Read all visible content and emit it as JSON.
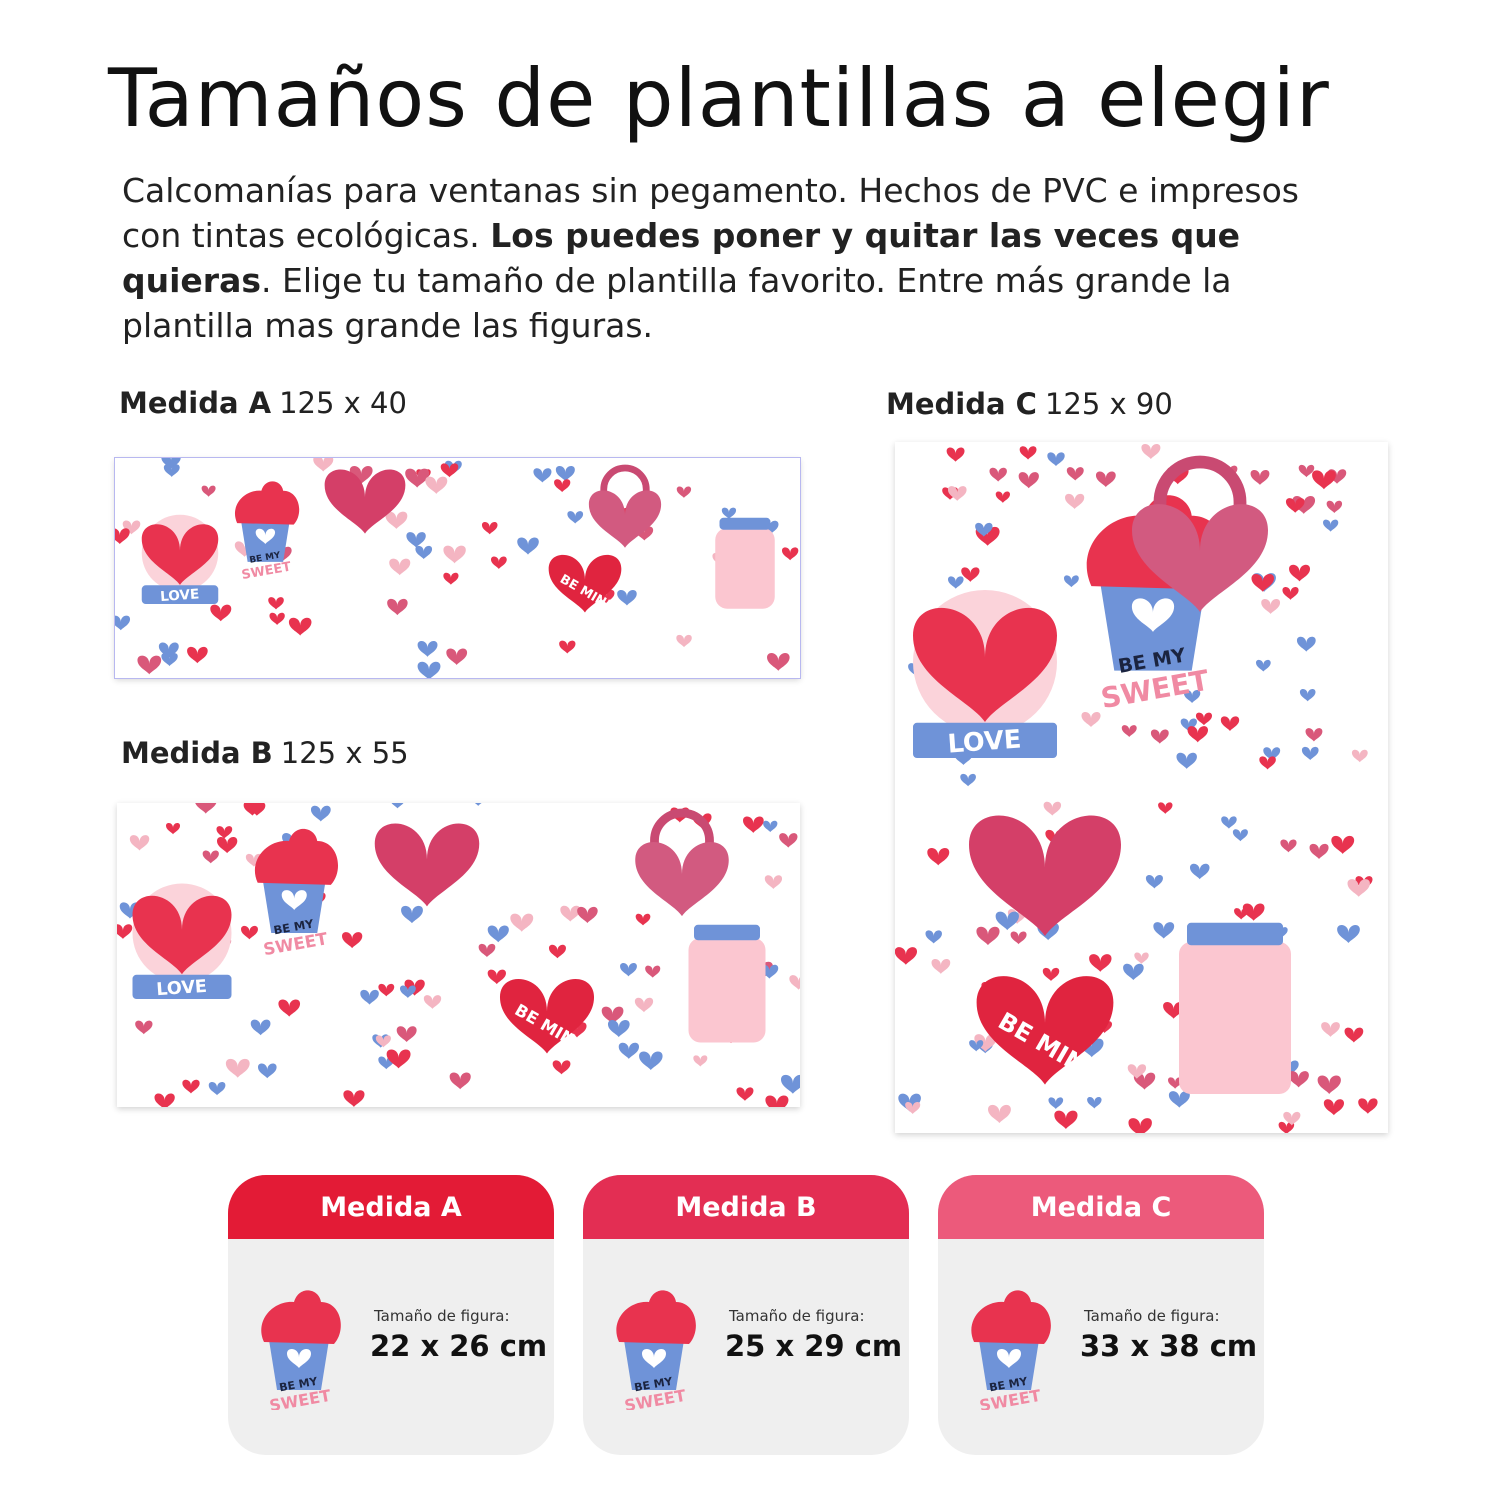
{
  "title": "Tamaños de plantillas a elegir",
  "description": {
    "part1": "Calcomanías para ventanas sin pegamento. Hechos de PVC e impresos con tintas ecológicas. ",
    "bold": "Los puedes poner y quitar las veces que quieras",
    "part2": ". Elige tu tamaño de plantilla favorito. Entre más grande la plantilla mas grande las figuras."
  },
  "sheets": [
    {
      "name": "Medida A",
      "size": "125 x 40"
    },
    {
      "name": "Medida B",
      "size": "125 x 55"
    },
    {
      "name": "Medida C",
      "size": "125 x 90"
    }
  ],
  "sticker_text": {
    "be_my": "BE MY",
    "sweet": "SWEET",
    "love": "LOVE",
    "be_mine": "BE MINE"
  },
  "cards": [
    {
      "title": "Medida A",
      "figure_label": "Tamaño de figura:",
      "figure_size": "22 x 26 cm",
      "color": "#e31b36"
    },
    {
      "title": "Medida B",
      "figure_label": "Tamaño de figura:",
      "figure_size": "25 x 29 cm",
      "color": "#e32e53"
    },
    {
      "title": "Medida C",
      "figure_label": "Tamaño de figura:",
      "figure_size": "33 x 38 cm",
      "color": "#ec5a7b"
    }
  ],
  "colors": {
    "red": "#e8334f",
    "pink": "#d9587a",
    "blue": "#6f93d8",
    "light_pink": "#f4b5c2"
  }
}
